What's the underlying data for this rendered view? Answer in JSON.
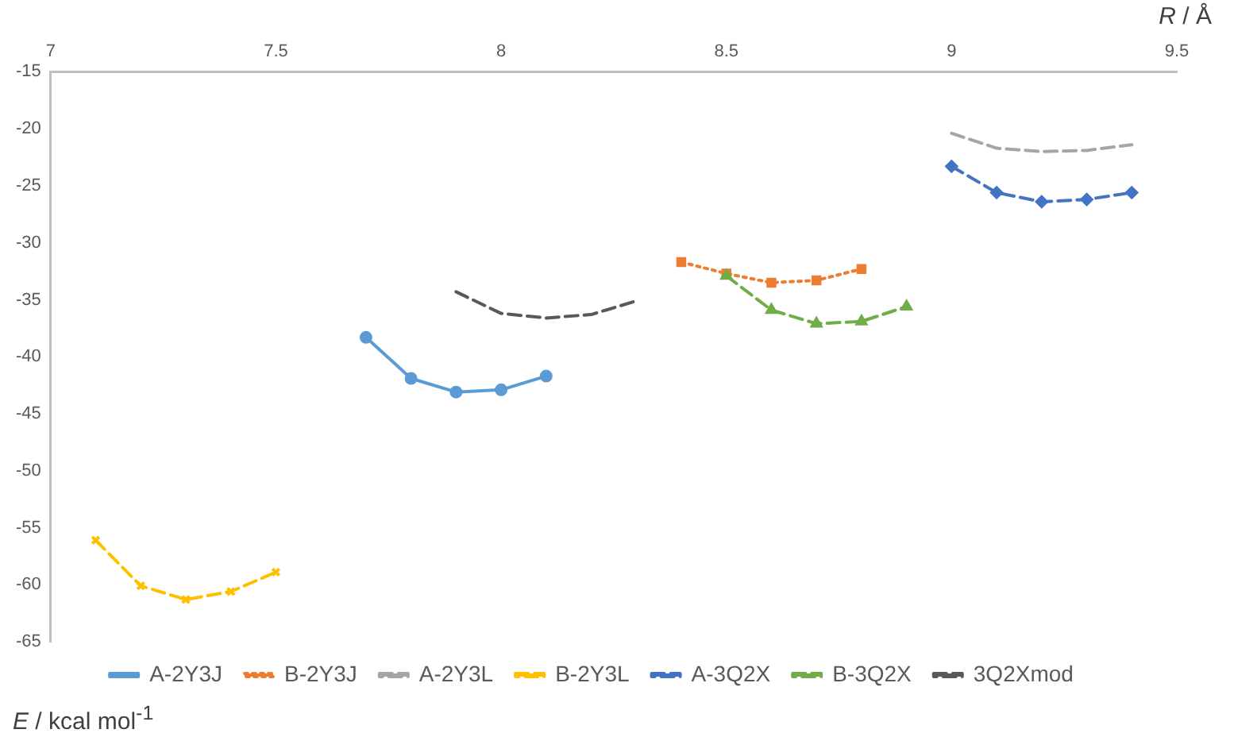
{
  "chart_data": {
    "type": "line",
    "xlabel": "R / Å",
    "ylabel": "E / kcal mol$^{-1}$",
    "xlim": [
      7,
      9.5
    ],
    "xticks": [
      7,
      7.5,
      8,
      8.5,
      9,
      9.5
    ],
    "ylim": [
      -65,
      -15
    ],
    "yticks": [
      -15,
      -20,
      -25,
      -30,
      -35,
      -40,
      -45,
      -50,
      -55,
      -60,
      -65
    ],
    "grid": false,
    "legend": "bottom",
    "series": [
      {
        "name": "A-2Y3J",
        "color": "#5b9bd5",
        "marker": "circle",
        "line_style": "solid",
        "x": [
          7.7,
          7.8,
          7.9,
          8.0,
          8.1
        ],
        "values": [
          -38.3,
          -41.9,
          -43.1,
          -42.9,
          -41.7
        ]
      },
      {
        "name": "B-2Y3J",
        "color": "#ed7d31",
        "marker": "square",
        "line_style": "dotted",
        "x": [
          8.4,
          8.5,
          8.6,
          8.7,
          8.8
        ],
        "values": [
          -31.7,
          -32.7,
          -33.5,
          -33.3,
          -32.3
        ]
      },
      {
        "name": "A-2Y3L",
        "color": "#a5a5a5",
        "marker": "none",
        "line_style": "dashed",
        "x": [
          9.0,
          9.1,
          9.2,
          9.3,
          9.4
        ],
        "values": [
          -20.4,
          -21.7,
          -22.0,
          -21.9,
          -21.4
        ]
      },
      {
        "name": "B-2Y3L",
        "color": "#ffc000",
        "marker": "cross",
        "line_style": "dashed",
        "x": [
          7.1,
          7.2,
          7.3,
          7.4,
          7.5
        ],
        "values": [
          -56.1,
          -60.1,
          -61.3,
          -60.6,
          -58.9
        ]
      },
      {
        "name": "A-3Q2X",
        "color": "#4472c4",
        "marker": "diamond",
        "line_style": "dashed",
        "x": [
          9.0,
          9.1,
          9.2,
          9.3,
          9.4
        ],
        "values": [
          -23.3,
          -25.6,
          -26.4,
          -26.2,
          -25.6
        ]
      },
      {
        "name": "B-3Q2X",
        "color": "#70ad47",
        "marker": "triangle",
        "line_style": "dashed",
        "x": [
          8.5,
          8.6,
          8.7,
          8.8,
          8.9
        ],
        "values": [
          -32.9,
          -35.9,
          -37.1,
          -36.9,
          -35.6
        ]
      },
      {
        "name": "3Q2Xmod",
        "color": "#595959",
        "marker": "none",
        "line_style": "dashed",
        "x": [
          7.9,
          8.0,
          8.1,
          8.2,
          8.3
        ],
        "values": [
          -34.3,
          -36.2,
          -36.6,
          -36.3,
          -35.1
        ]
      }
    ]
  }
}
